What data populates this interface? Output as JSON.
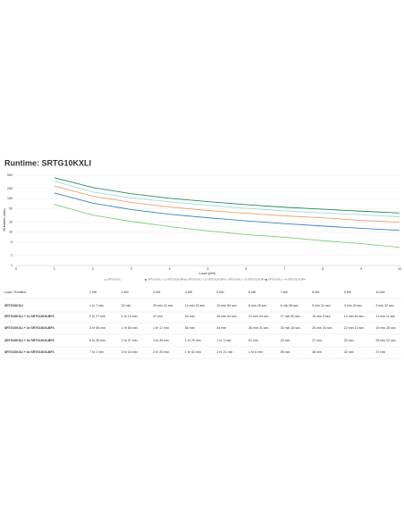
{
  "chart_data": {
    "type": "line",
    "title": "Runtime: SRTG10KXLI",
    "x_label": "Load (kW)",
    "y_label": "Runtime (min)",
    "log_y": true,
    "grid": true,
    "x": [
      1,
      2,
      3,
      4,
      5,
      6,
      7,
      8,
      9,
      10
    ],
    "xlim": [
      0,
      10
    ],
    "xticks": [
      0,
      1,
      2,
      3,
      4,
      5,
      6,
      7,
      8,
      9,
      10
    ],
    "ylim": [
      1,
      500
    ],
    "yticks": [
      1,
      2,
      5,
      10,
      20,
      50,
      100,
      200,
      500
    ],
    "series": [
      {
        "name": "SRTG10KXLI",
        "color": "#7ed07a",
        "values": [
          67,
          32,
          20.7,
          14.6,
          10.8,
          8.4,
          7,
          5.5,
          4.5,
          3.5
        ]
      },
      {
        "name": "SRTG10KXLI + 1x SRTG192XLBP4",
        "color": "#3f7fbf",
        "values": [
          147,
          73,
          47,
          34,
          26.7,
          21.6,
          17.8,
          15.1,
          12.9,
          11.2
        ]
      },
      {
        "name": "SRTG10KXLI + 2x SRTG192XLBP4",
        "color": "#f0a070",
        "values": [
          236,
          118,
          77,
          56,
          44,
          36.5,
          30.4,
          26.6,
          22.2,
          19.5
        ]
      },
      {
        "name": "SRTG10KXLI + 3x SRTG192XLBP4",
        "color": "#9fdcd8",
        "values": [
          330,
          157,
          105,
          80,
          63,
          51,
          43,
          37,
          33,
          28.4
        ]
      },
      {
        "name": "SRTG10KXLI + 4x SRTG192XLBP4",
        "color": "#2e8b57",
        "values": [
          422,
          214,
          140,
          102,
          81,
          66,
          55,
          48,
          42,
          37
        ]
      }
    ]
  },
  "table": {
    "header": "Load / Runtime",
    "columns": [
      "1 kW",
      "2 kW",
      "3 kW",
      "4 kW",
      "5 kW",
      "6 kW",
      "7 kW",
      "8 kW",
      "9 kW",
      "10 kW"
    ],
    "rows": [
      [
        "1 hr 7 min",
        "32 min",
        "20 min 41 sec",
        "14 min 33 sec",
        "10 min 50 sec",
        "8 min 25 sec",
        "6 min 58 sec",
        "5 min 31 sec",
        "4 min 30 sec",
        "3 min 32 sec"
      ],
      [
        "2 hr 27 min",
        "1 hr 13 min",
        "47 min",
        "34 min",
        "26 min 44 sec",
        "21 min 34 sec",
        "17 min 50 sec",
        "15 min 3 sec",
        "12 min 54 sec",
        "11 min 11 sec"
      ],
      [
        "3 hr 56 min",
        "1 hr 58 min",
        "1 hr 17 min",
        "56 min",
        "44 min",
        "36 min 31 sec",
        "30 min 26 sec",
        "26 min 34 sec",
        "22 min 10 sec",
        "19 min 28 sec"
      ],
      [
        "5 hr 30 min",
        "2 hr 37 min",
        "1 hr 45 min",
        "1 hr 20 min",
        "1 hr 3 min",
        "51 min",
        "43 min",
        "37 min",
        "33 min",
        "28 min 22 sec"
      ],
      [
        "7 hr 2 min",
        "3 hr 34 min",
        "2 hr 20 min",
        "1 hr 42 min",
        "1 hr 21 min",
        "1 hr 6 min",
        "55 min",
        "48 min",
        "42 min",
        "37 min"
      ]
    ]
  }
}
